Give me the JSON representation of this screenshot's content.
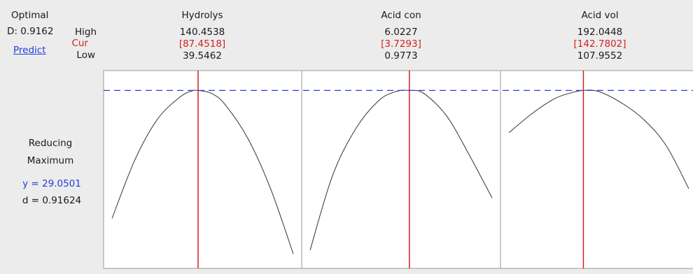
{
  "optimizer": {
    "optimal_label": "Optimal",
    "d_value": "D: 0.9162",
    "predict_label": "Predict",
    "row_high": "High",
    "row_cur": "Cur",
    "row_low": "Low"
  },
  "response": {
    "name": "Reducing",
    "goal": "Maximum",
    "y_text": "y = 29.0501",
    "d_text": "d = 0.91624"
  },
  "factors": [
    {
      "name": "Hydrolys",
      "high": "140.4538",
      "cur": "[87.4518]",
      "low": "39.5462"
    },
    {
      "name": "Acid con",
      "high": "6.0227",
      "cur": "[3.7293]",
      "low": "0.9773"
    },
    {
      "name": "Acid vol",
      "high": "192.0448",
      "cur": "[142.7802]",
      "low": "107.9552"
    }
  ],
  "colors": {
    "current_line": "#d42020",
    "optimum_line": "#2b3fd6",
    "curve": "#333333",
    "panel_bg": "#ffffff",
    "border": "#9a9a9a"
  },
  "chart_data": {
    "type": "line",
    "ylim": [
      0,
      1
    ],
    "optimum_y": 0.91624,
    "series": [
      {
        "x": [
          39.5462,
          52.1,
          64.7,
          77.3,
          84.0,
          87.4518,
          95.0,
          102.5,
          115.1,
          127.8,
          140.4538
        ],
        "y": [
          0.23,
          0.54,
          0.76,
          0.88,
          0.913,
          0.91624,
          0.9,
          0.84,
          0.66,
          0.39,
          0.04
        ]
      },
      {
        "x": [
          0.9773,
          1.6,
          2.24,
          2.87,
          3.35,
          3.7293,
          4.13,
          4.76,
          5.39,
          6.0227
        ],
        "y": [
          0.06,
          0.46,
          0.71,
          0.86,
          0.91,
          0.91624,
          0.9,
          0.78,
          0.57,
          0.34
        ]
      },
      {
        "x": [
          107.9552,
          118.5,
          129.0,
          136.0,
          142.7802,
          150.0,
          160.5,
          171.0,
          181.5,
          192.0448
        ],
        "y": [
          0.69,
          0.79,
          0.87,
          0.9,
          0.91624,
          0.91,
          0.85,
          0.76,
          0.62,
          0.39
        ]
      }
    ]
  }
}
